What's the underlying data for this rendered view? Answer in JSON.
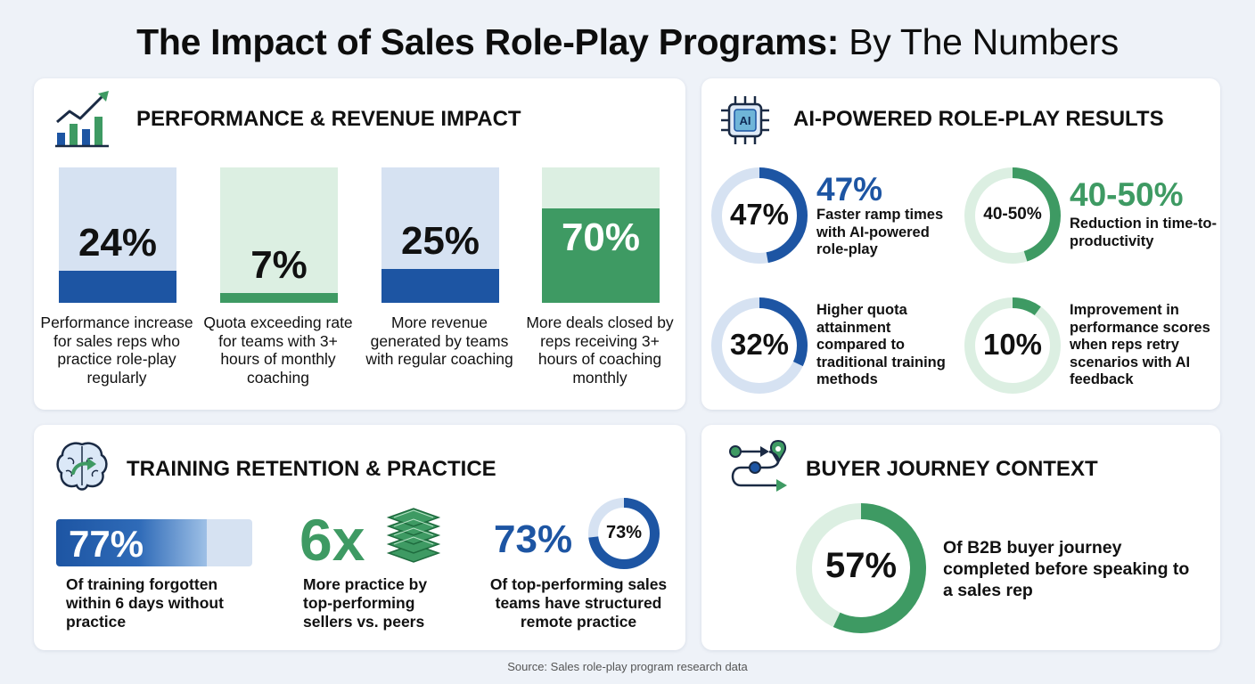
{
  "title": {
    "bold": "The Impact of Sales Role-Play Programs:",
    "normal": "By The Numbers"
  },
  "colors": {
    "blue": "#1d55a3",
    "blue_light": "#d6e2f2",
    "green": "#3e9a63",
    "green_light": "#dcefe2"
  },
  "performance": {
    "title": "PERFORMANCE & REVENUE IMPACT",
    "icon": "bar-chart-trend-icon",
    "chart_data": {
      "type": "bar",
      "categories": [
        "Performance increase for sales reps who practice role-play regularly",
        "Quota exceeding rate for teams with 3+ hours of monthly coaching",
        "More revenue generated by teams with regular coaching",
        "More deals closed by reps receiving 3+ hours of coaching monthly"
      ],
      "values": [
        24,
        7,
        25,
        70
      ],
      "ylim": [
        0,
        100
      ],
      "labels": [
        "24%",
        "7%",
        "25%",
        "70%"
      ]
    },
    "bars": [
      {
        "value_label": "24%",
        "desc": "Performance increase for sales reps who practice role-play regularly"
      },
      {
        "value_label": "7%",
        "desc": "Quota exceeding rate for teams with 3+ hours of monthly coaching"
      },
      {
        "value_label": "25%",
        "desc": "More revenue generated by teams with regular coaching"
      },
      {
        "value_label": "70%",
        "desc": "More deals closed by reps receiving 3+ hours of coaching monthly"
      }
    ]
  },
  "ai": {
    "title": "AI-POWERED ROLE-PLAY RESULTS",
    "icon": "ai-chip-icon",
    "items": [
      {
        "ring_label": "47%",
        "big": "47%",
        "desc": "Faster ramp times with AI-powered role-play",
        "fill": 0.47
      },
      {
        "ring_label": "40-50%",
        "big": "40-50%",
        "desc": "Reduction in time-to-productivity",
        "fill": 0.45
      },
      {
        "ring_label": "32%",
        "desc": "Higher quota attainment compared to traditional training methods",
        "fill": 0.32
      },
      {
        "ring_label": "10%",
        "desc": "Improvement in performance scores when reps retry scenarios with AI feedback",
        "fill": 0.1
      }
    ]
  },
  "training": {
    "title": "TRAINING RETENTION & PRACTICE",
    "icon": "brain-icon",
    "forgotten": {
      "value": "77%",
      "fill": 0.77,
      "desc": "Of training forgotten within 6 days without practice"
    },
    "practice": {
      "value": "6x",
      "icon": "stacked-layers-icon",
      "desc": "More practice by top-performing sellers vs. peers"
    },
    "remote": {
      "value": "73%",
      "ring_label": "73%",
      "fill": 0.73,
      "desc": "Of top-performing sales teams have structured remote practice"
    }
  },
  "buyer": {
    "title": "BUYER JOURNEY CONTEXT",
    "icon": "route-map-icon",
    "ring_label": "57%",
    "fill": 0.57,
    "desc": "Of B2B buyer journey completed before speaking to a sales rep"
  },
  "source": "Source: Sales role-play program research data"
}
